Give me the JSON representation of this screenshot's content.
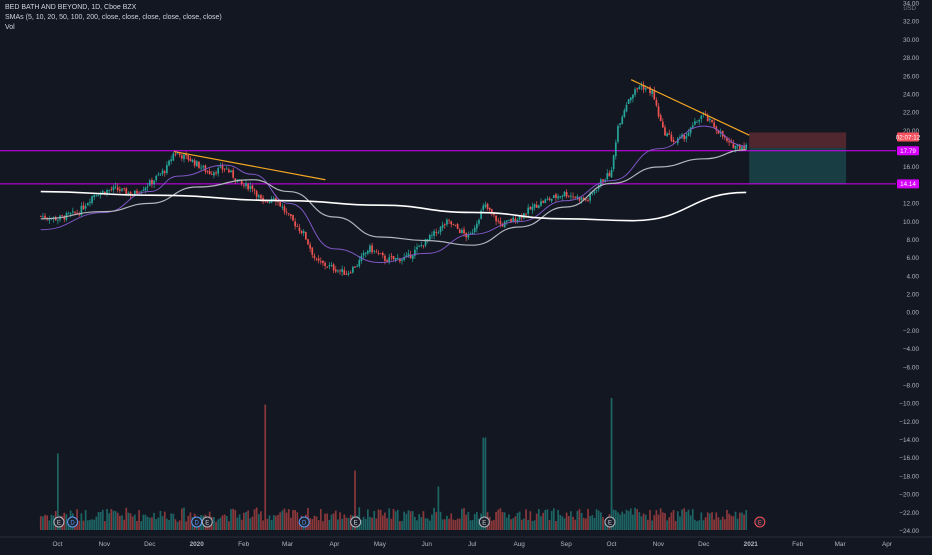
{
  "header": {
    "symbol_line": "BED BATH AND BEYOND, 1D, Cboe BZX",
    "sma_line": "SMAs (5, 10, 20, 50, 100, 200, close, close, close, close, close, close)",
    "vol_line": "Vol"
  },
  "price_axis": {
    "currency": "USD",
    "ticks": [
      "34.00",
      "32.00",
      "30.00",
      "28.00",
      "26.00",
      "24.00",
      "22.00",
      "20.00",
      "18.00",
      "16.00",
      "14.00",
      "12.00",
      "10.00",
      "8.00",
      "6.00",
      "4.00",
      "2.00",
      "0.00",
      "−2.00",
      "−4.00",
      "−6.00",
      "−8.00",
      "−10.00",
      "−12.00",
      "−14.00",
      "−16.00",
      "−18.00",
      "−20.00",
      "−22.00",
      "−24.00"
    ],
    "current_price_label": "02:07:12",
    "level_labels": [
      "17.79",
      "14.14"
    ]
  },
  "time_axis": {
    "ticks": [
      "Oct",
      "Nov",
      "Dec",
      "2020",
      "Feb",
      "Mar",
      "Apr",
      "May",
      "Jun",
      "Jul",
      "Aug",
      "Sep",
      "Oct",
      "Nov",
      "Dec",
      "2021",
      "Feb",
      "Mar",
      "Apr"
    ]
  },
  "colors": {
    "background": "#131722",
    "up": "#26a69a",
    "down": "#ef5350",
    "level_line": "#d500f9",
    "trendline": "#f5a623",
    "sma_purple": "#7e57c2",
    "sma_gray": "#b2b5be",
    "sma_white": "#ffffff",
    "current_price": "#f7525f"
  },
  "chart_data": {
    "type": "candlestick",
    "title": "BED BATH AND BEYOND, 1D, Cboe BZX",
    "ylabel": "USD",
    "ylim": [
      -24.6,
      34.6
    ],
    "x_ticks": [
      "Oct",
      "Nov",
      "Dec",
      "2020",
      "Feb",
      "Mar",
      "Apr",
      "May",
      "Jun",
      "Jul",
      "Aug",
      "Sep",
      "Oct",
      "Nov",
      "Dec",
      "2021",
      "Feb",
      "Mar",
      "Apr"
    ],
    "price_path": [
      [
        "2019-09-20",
        10.6
      ],
      [
        "2019-10-01",
        10.3
      ],
      [
        "2019-10-15",
        11.0
      ],
      [
        "2019-10-25",
        13.0
      ],
      [
        "2019-11-08",
        13.6
      ],
      [
        "2019-11-20",
        13.0
      ],
      [
        "2019-12-01",
        14.2
      ],
      [
        "2019-12-12",
        15.8
      ],
      [
        "2019-12-17",
        17.6
      ],
      [
        "2019-12-27",
        16.9
      ],
      [
        "2020-01-09",
        15.4
      ],
      [
        "2020-01-20",
        15.9
      ],
      [
        "2020-01-31",
        14.0
      ],
      [
        "2020-02-07",
        13.8
      ],
      [
        "2020-02-14",
        11.9
      ],
      [
        "2020-02-21",
        12.8
      ],
      [
        "2020-03-02",
        10.5
      ],
      [
        "2020-03-12",
        8.6
      ],
      [
        "2020-03-20",
        5.6
      ],
      [
        "2020-03-31",
        4.9
      ],
      [
        "2020-04-09",
        4.3
      ],
      [
        "2020-04-16",
        5.3
      ],
      [
        "2020-04-24",
        7.1
      ],
      [
        "2020-05-05",
        5.8
      ],
      [
        "2020-05-19",
        6.0
      ],
      [
        "2020-06-05",
        8.5
      ],
      [
        "2020-06-15",
        10.0
      ],
      [
        "2020-06-29",
        8.2
      ],
      [
        "2020-07-09",
        11.8
      ],
      [
        "2020-07-20",
        9.6
      ],
      [
        "2020-07-31",
        10.4
      ],
      [
        "2020-08-14",
        12.0
      ],
      [
        "2020-08-31",
        13.1
      ],
      [
        "2020-09-15",
        12.3
      ],
      [
        "2020-09-25",
        14.6
      ],
      [
        "2020-10-01",
        15.4
      ],
      [
        "2020-10-05",
        20.4
      ],
      [
        "2020-10-12",
        23.5
      ],
      [
        "2020-10-20",
        25.0
      ],
      [
        "2020-10-28",
        24.2
      ],
      [
        "2020-11-04",
        20.0
      ],
      [
        "2020-11-12",
        18.7
      ],
      [
        "2020-11-20",
        19.6
      ],
      [
        "2020-11-30",
        21.8
      ],
      [
        "2020-12-10",
        20.1
      ],
      [
        "2020-12-18",
        18.4
      ],
      [
        "2020-12-29",
        18.3
      ]
    ],
    "series": [
      {
        "name": "SMA 20",
        "type": "line",
        "points": [
          [
            "2019-09-20",
            9.1
          ],
          [
            "2019-11-01",
            11.0
          ],
          [
            "2019-12-01",
            13.3
          ],
          [
            "2019-12-20",
            15.0
          ],
          [
            "2020-01-20",
            16.2
          ],
          [
            "2020-02-07",
            15.2
          ],
          [
            "2020-03-02",
            12.0
          ],
          [
            "2020-04-01",
            7.0
          ],
          [
            "2020-05-01",
            5.5
          ],
          [
            "2020-06-01",
            6.5
          ],
          [
            "2020-07-01",
            8.6
          ],
          [
            "2020-08-01",
            10.0
          ],
          [
            "2020-09-01",
            12.3
          ],
          [
            "2020-10-01",
            14.5
          ],
          [
            "2020-11-01",
            18.0
          ],
          [
            "2020-12-01",
            20.5
          ],
          [
            "2020-12-29",
            18.3
          ]
        ]
      },
      {
        "name": "SMA 50",
        "type": "line",
        "points": [
          [
            "2019-09-20",
            10.3
          ],
          [
            "2019-11-01",
            11.1
          ],
          [
            "2019-12-01",
            12.0
          ],
          [
            "2020-01-01",
            13.8
          ],
          [
            "2020-02-07",
            14.6
          ],
          [
            "2020-03-02",
            13.3
          ],
          [
            "2020-04-01",
            10.5
          ],
          [
            "2020-05-01",
            8.3
          ],
          [
            "2020-06-01",
            7.9
          ],
          [
            "2020-07-01",
            7.4
          ],
          [
            "2020-08-01",
            9.4
          ],
          [
            "2020-09-01",
            11.6
          ],
          [
            "2020-10-01",
            14.2
          ],
          [
            "2020-11-01",
            16.0
          ],
          [
            "2020-12-01",
            16.9
          ],
          [
            "2020-12-29",
            17.9
          ]
        ]
      },
      {
        "name": "SMA 200",
        "type": "line",
        "points": [
          [
            "2019-09-20",
            13.3
          ],
          [
            "2019-12-01",
            12.9
          ],
          [
            "2020-03-01",
            12.3
          ],
          [
            "2020-05-01",
            11.8
          ],
          [
            "2020-07-01",
            11.0
          ],
          [
            "2020-09-01",
            10.3
          ],
          [
            "2020-10-15",
            10.1
          ],
          [
            "2020-12-29",
            13.2
          ]
        ]
      }
    ],
    "trendlines": [
      {
        "from": [
          "2019-12-17",
          17.7
        ],
        "to": [
          "2020-03-26",
          14.6
        ]
      },
      {
        "from": [
          "2020-10-14",
          25.6
        ],
        "to": [
          "2020-12-31",
          19.5
        ]
      }
    ],
    "horizontal_levels": [
      17.79,
      14.14
    ],
    "position_box": {
      "from_date": "2020-12-31",
      "to_date": "2021-03-05",
      "stop": 19.8,
      "entry": 18.1,
      "target": 14.14
    },
    "volume": {
      "type": "bar",
      "spikes": [
        [
          "2020-02-15",
          0.95
        ],
        [
          "2020-07-09",
          0.7
        ],
        [
          "2020-10-01",
          1.0
        ],
        [
          "2019-10-01",
          0.58
        ],
        [
          "2020-04-15",
          0.45
        ],
        [
          "2020-06-09",
          0.33
        ]
      ]
    },
    "earnings_markers": [
      "2019-10-02",
      "2020-01-08",
      "2020-04-15",
      "2020-07-09",
      "2020-09-30",
      "2021-01-07"
    ],
    "dividend_markers": [
      "2019-10-11",
      "2020-01-01",
      "2020-03-12"
    ]
  }
}
